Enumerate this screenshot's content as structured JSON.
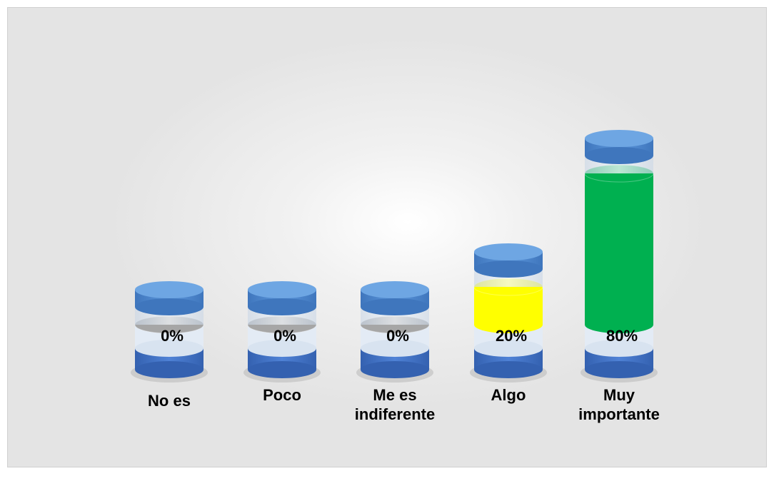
{
  "chart_data": {
    "type": "cylinder",
    "categories": [
      "No es",
      "Poco",
      "Me es indiferente",
      "Algo",
      "Muy importante"
    ],
    "values": [
      0,
      0,
      0,
      20,
      80
    ],
    "value_labels": [
      "0%",
      "0%",
      "0%",
      "20%",
      "80%"
    ],
    "colors": [
      "#a6a6a6",
      "#a6a6a6",
      "#a6a6a6",
      "#ffff00",
      "#00b050"
    ]
  }
}
